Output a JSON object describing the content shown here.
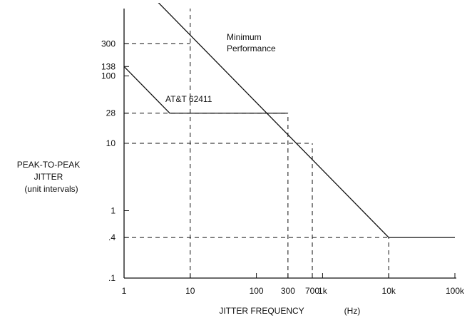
{
  "chart_data": {
    "type": "line",
    "x_scale": "log",
    "y_scale": "log",
    "xlim": [
      1,
      100000
    ],
    "ylim": [
      0.1,
      1000
    ],
    "x_ticks": [
      {
        "value": 1,
        "label": "1"
      },
      {
        "value": 10,
        "label": "10"
      },
      {
        "value": 100,
        "label": "100"
      },
      {
        "value": 300,
        "label": "300"
      },
      {
        "value": 700,
        "label": "700"
      },
      {
        "value": 1000,
        "label": "1k"
      },
      {
        "value": 10000,
        "label": "10k"
      },
      {
        "value": 100000,
        "label": "100k"
      }
    ],
    "y_ticks": [
      {
        "value": 0.1,
        "label": ".1"
      },
      {
        "value": 0.4,
        "label": ".4"
      },
      {
        "value": 1,
        "label": "1"
      },
      {
        "value": 10,
        "label": "10"
      },
      {
        "value": 28,
        "label": "28"
      },
      {
        "value": 100,
        "label": "100"
      },
      {
        "value": 138,
        "label": "138"
      },
      {
        "value": 300,
        "label": "300"
      }
    ],
    "xlabel": "JITTER FREQUENCY",
    "xlabel_unit": "(Hz)",
    "ylabel": [
      "PEAK-TO-PEAK",
      "JITTER",
      "(unit intervals)"
    ],
    "series": [
      {
        "name": "Minimum Performance",
        "label_lines": [
          "Minimum",
          "Performance"
        ],
        "x": [
          1.5,
          10000,
          100000
        ],
        "y": [
          2700,
          0.4,
          0.4
        ]
      },
      {
        "name": "AT&T 62411",
        "label_lines": [
          "AT&T 62411"
        ],
        "x": [
          1,
          4.9,
          300
        ],
        "y": [
          138,
          28,
          28
        ]
      }
    ],
    "reference_lines": [
      {
        "orientation": "horizontal",
        "y": 300,
        "x_end": 10
      },
      {
        "orientation": "horizontal",
        "y": 28,
        "x_end": 300
      },
      {
        "orientation": "horizontal",
        "y": 10,
        "x_end": 700
      },
      {
        "orientation": "horizontal",
        "y": 0.4,
        "x_end": 10000
      },
      {
        "orientation": "vertical",
        "x": 10,
        "y_end": 1900
      },
      {
        "orientation": "vertical",
        "x": 300,
        "y_end": 28
      },
      {
        "orientation": "vertical",
        "x": 700,
        "y_end": 10
      },
      {
        "orientation": "vertical",
        "x": 10000,
        "y_end": 0.4
      }
    ],
    "grid": false
  }
}
